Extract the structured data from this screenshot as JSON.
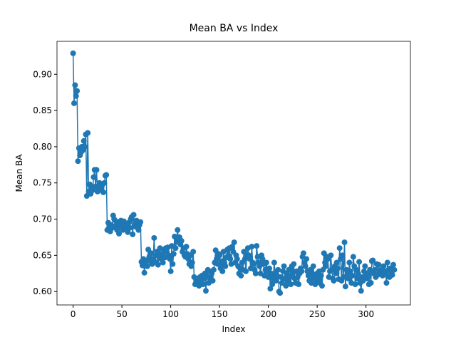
{
  "chart_data": {
    "type": "line",
    "title": "Mean BA vs Index",
    "x_label": "Index",
    "y_label": "Mean BA",
    "color": "#1f77b4",
    "marker": "circle",
    "x": [
      0,
      1,
      2,
      3,
      4,
      5,
      6,
      7,
      8,
      9,
      10,
      11,
      12,
      13,
      14,
      15,
      16,
      17,
      18,
      19,
      20,
      21,
      22,
      23,
      24,
      25,
      26,
      27,
      28,
      29,
      30,
      31,
      32,
      33,
      34,
      35,
      36,
      37,
      38,
      39,
      40,
      41,
      42,
      43,
      44,
      45,
      46,
      47,
      48,
      49,
      50,
      51,
      52,
      53,
      54,
      55,
      56,
      57,
      58,
      59,
      60,
      61,
      62,
      63,
      64,
      65,
      66,
      67,
      68,
      69,
      70,
      71,
      72,
      73,
      74,
      75,
      76,
      77,
      78,
      79,
      80,
      81,
      82,
      83,
      84,
      85,
      86,
      87,
      88,
      89,
      90,
      91,
      92,
      93,
      94,
      95,
      96,
      97,
      98,
      99,
      100,
      101,
      102,
      103,
      104,
      105,
      106,
      107,
      108,
      109,
      110,
      111,
      112,
      113,
      114,
      115,
      116,
      117,
      118,
      119,
      120,
      121,
      122,
      123,
      124,
      125,
      126,
      127,
      128,
      129,
      130,
      131,
      132,
      133,
      134,
      135,
      136,
      137,
      138,
      139,
      140,
      141,
      142,
      143,
      144,
      145,
      146,
      147,
      148,
      149,
      150,
      151,
      152,
      153,
      154,
      155,
      156,
      157,
      158,
      159,
      160,
      161,
      162,
      163,
      164,
      165,
      166,
      167,
      168,
      169,
      170,
      171,
      172,
      173,
      174,
      175,
      176,
      177,
      178,
      179,
      180,
      181,
      182,
      183,
      184,
      185,
      186,
      187,
      188,
      189,
      190,
      191,
      192,
      193,
      194,
      195,
      196,
      197,
      198,
      199,
      200,
      201,
      202,
      203,
      204,
      205,
      206,
      207,
      208,
      209,
      210,
      211,
      212,
      213,
      214,
      215,
      216,
      217,
      218,
      219,
      220,
      221,
      222,
      223,
      224,
      225,
      226,
      227,
      228,
      229,
      230,
      231,
      232,
      233,
      234,
      235,
      236,
      237,
      238,
      239,
      240,
      241,
      242,
      243,
      244,
      245,
      246,
      247,
      248,
      249,
      250,
      251,
      252,
      253,
      254,
      255,
      256,
      257,
      258,
      259,
      260,
      261,
      262,
      263,
      264,
      265,
      266,
      267,
      268,
      269,
      270,
      271,
      272,
      273,
      274,
      275,
      276,
      277,
      278,
      279,
      280,
      281,
      282,
      283,
      284,
      285,
      286,
      287,
      288,
      289,
      290,
      291,
      292,
      293,
      294,
      295,
      296,
      297,
      298,
      299,
      300,
      301,
      302,
      303,
      304,
      305,
      306,
      307,
      308,
      309,
      310,
      311,
      312,
      313,
      314,
      315,
      316,
      317,
      318,
      319,
      320,
      321,
      322,
      323,
      324,
      325,
      326,
      327,
      328,
      329
    ],
    "values": [
      0.929,
      0.86,
      0.885,
      0.87,
      0.877,
      0.78,
      0.798,
      0.788,
      0.792,
      0.8,
      0.795,
      0.808,
      0.8,
      0.817,
      0.732,
      0.819,
      0.738,
      0.748,
      0.735,
      0.745,
      0.74,
      0.758,
      0.768,
      0.745,
      0.768,
      0.738,
      0.742,
      0.75,
      0.745,
      0.74,
      0.748,
      0.737,
      0.75,
      0.76,
      0.761,
      0.685,
      0.695,
      0.69,
      0.683,
      0.692,
      0.688,
      0.705,
      0.7,
      0.69,
      0.697,
      0.685,
      0.695,
      0.68,
      0.69,
      0.698,
      0.692,
      0.685,
      0.697,
      0.688,
      0.693,
      0.69,
      0.682,
      0.695,
      0.688,
      0.7,
      0.703,
      0.679,
      0.706,
      0.69,
      0.693,
      0.698,
      0.688,
      0.685,
      0.692,
      0.696,
      0.641,
      0.636,
      0.645,
      0.626,
      0.64,
      0.643,
      0.635,
      0.658,
      0.648,
      0.642,
      0.653,
      0.638,
      0.645,
      0.674,
      0.641,
      0.65,
      0.655,
      0.637,
      0.648,
      0.66,
      0.645,
      0.652,
      0.64,
      0.658,
      0.647,
      0.66,
      0.655,
      0.661,
      0.65,
      0.645,
      0.628,
      0.663,
      0.638,
      0.652,
      0.676,
      0.66,
      0.672,
      0.685,
      0.668,
      0.675,
      0.665,
      0.67,
      0.655,
      0.66,
      0.65,
      0.648,
      0.662,
      0.652,
      0.645,
      0.638,
      0.65,
      0.635,
      0.64,
      0.655,
      0.62,
      0.61,
      0.615,
      0.612,
      0.618,
      0.608,
      0.62,
      0.615,
      0.622,
      0.61,
      0.618,
      0.625,
      0.601,
      0.62,
      0.63,
      0.612,
      0.628,
      0.618,
      0.625,
      0.615,
      0.63,
      0.64,
      0.657,
      0.645,
      0.638,
      0.652,
      0.65,
      0.632,
      0.642,
      0.628,
      0.655,
      0.64,
      0.635,
      0.647,
      0.658,
      0.65,
      0.66,
      0.645,
      0.638,
      0.662,
      0.655,
      0.668,
      0.64,
      0.65,
      0.645,
      0.635,
      0.625,
      0.632,
      0.622,
      0.64,
      0.63,
      0.655,
      0.645,
      0.628,
      0.65,
      0.66,
      0.65,
      0.645,
      0.632,
      0.662,
      0.64,
      0.638,
      0.63,
      0.625,
      0.663,
      0.648,
      0.64,
      0.635,
      0.625,
      0.65,
      0.645,
      0.638,
      0.622,
      0.63,
      0.64,
      0.628,
      0.62,
      0.632,
      0.604,
      0.625,
      0.61,
      0.618,
      0.64,
      0.625,
      0.615,
      0.622,
      0.63,
      0.6,
      0.598,
      0.62,
      0.612,
      0.628,
      0.635,
      0.618,
      0.608,
      0.625,
      0.615,
      0.63,
      0.62,
      0.61,
      0.635,
      0.625,
      0.638,
      0.618,
      0.612,
      0.628,
      0.62,
      0.61,
      0.625,
      0.632,
      0.628,
      0.648,
      0.653,
      0.64,
      0.635,
      0.645,
      0.628,
      0.622,
      0.615,
      0.63,
      0.612,
      0.625,
      0.635,
      0.618,
      0.61,
      0.62,
      0.625,
      0.615,
      0.628,
      0.612,
      0.622,
      0.608,
      0.63,
      0.653,
      0.64,
      0.635,
      0.648,
      0.645,
      0.62,
      0.628,
      0.65,
      0.63,
      0.618,
      0.615,
      0.635,
      0.625,
      0.64,
      0.632,
      0.617,
      0.66,
      0.645,
      0.615,
      0.65,
      0.62,
      0.668,
      0.607,
      0.63,
      0.625,
      0.618,
      0.64,
      0.628,
      0.612,
      0.622,
      0.648,
      0.635,
      0.61,
      0.63,
      0.618,
      0.625,
      0.641,
      0.612,
      0.601,
      0.62,
      0.615,
      0.628,
      0.635,
      0.622,
      0.618,
      0.625,
      0.61,
      0.63,
      0.612,
      0.642,
      0.643,
      0.625,
      0.63,
      0.62,
      0.638,
      0.623,
      0.637,
      0.628,
      0.625,
      0.63,
      0.622,
      0.635,
      0.628,
      0.625,
      0.612,
      0.64,
      0.63,
      0.62,
      0.632,
      0.625,
      0.623,
      0.637,
      0.63
    ],
    "xlim": [
      -16.5,
      345.5
    ],
    "ylim": [
      0.5815,
      0.9455
    ],
    "xticks": [
      0,
      50,
      100,
      150,
      200,
      250,
      300
    ],
    "yticks": [
      {
        "value": 0.6,
        "label": "0.60"
      },
      {
        "value": 0.65,
        "label": "0.65"
      },
      {
        "value": 0.7,
        "label": "0.70"
      },
      {
        "value": 0.75,
        "label": "0.75"
      },
      {
        "value": 0.8,
        "label": "0.80"
      },
      {
        "value": 0.85,
        "label": "0.85"
      },
      {
        "value": 0.9,
        "label": "0.90"
      }
    ]
  }
}
